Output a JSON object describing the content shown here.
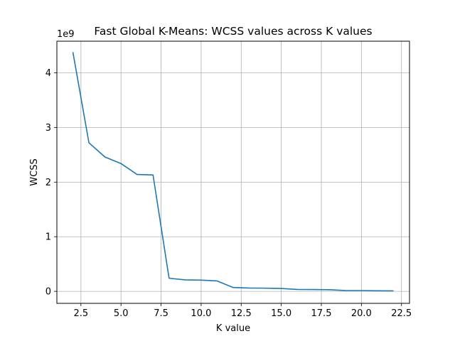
{
  "chart_data": {
    "type": "line",
    "title": "Fast Global K-Means: WCSS values across K values",
    "xlabel": "K value",
    "ylabel": "WCSS",
    "y_scale_label": "1e9",
    "xlim": [
      1.0,
      23.0
    ],
    "ylim": [
      -0.22,
      4.58
    ],
    "x_ticks": [
      2.5,
      5.0,
      7.5,
      10.0,
      12.5,
      15.0,
      17.5,
      20.0,
      22.5
    ],
    "x_tick_labels": [
      "2.5",
      "5.0",
      "7.5",
      "10.0",
      "12.5",
      "15.0",
      "17.5",
      "20.0",
      "22.5"
    ],
    "y_ticks": [
      0,
      1,
      2,
      3,
      4
    ],
    "y_tick_labels": [
      "0",
      "1",
      "2",
      "3",
      "4"
    ],
    "grid": true,
    "series": [
      {
        "color": "#1f77b4",
        "x": [
          2,
          3,
          4,
          5,
          6,
          7,
          8,
          9,
          10,
          11,
          12,
          13,
          14,
          15,
          16,
          17,
          18,
          19,
          20,
          21,
          22
        ],
        "y": [
          4.38,
          2.72,
          2.46,
          2.34,
          2.14,
          2.13,
          0.24,
          0.21,
          0.205,
          0.19,
          0.07,
          0.06,
          0.058,
          0.052,
          0.035,
          0.033,
          0.03,
          0.015,
          0.014,
          0.01,
          0.008
        ]
      }
    ]
  }
}
